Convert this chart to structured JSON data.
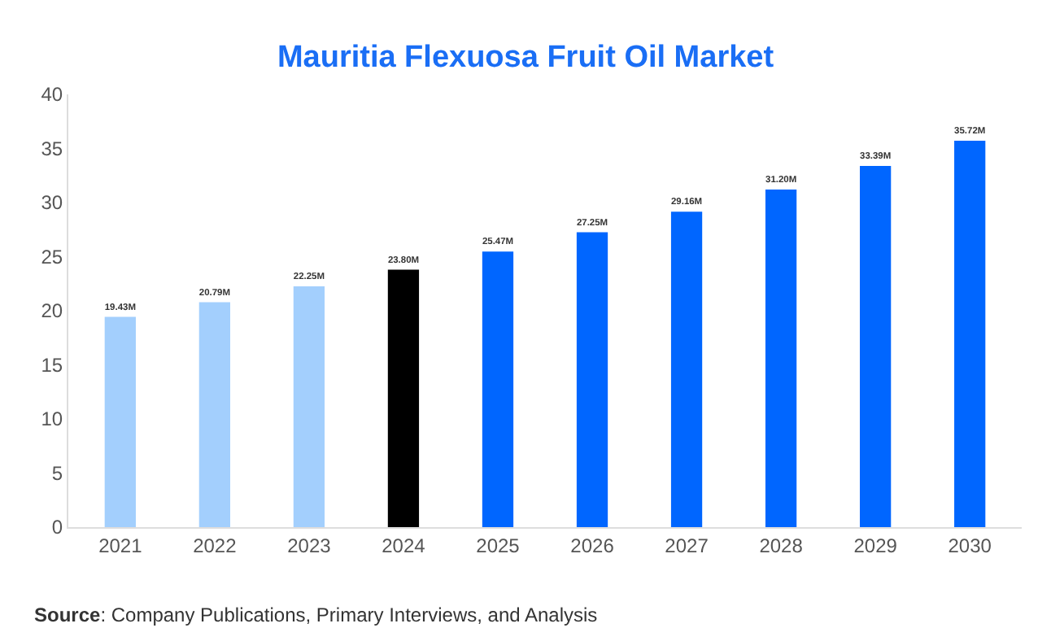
{
  "chart_data": {
    "type": "bar",
    "title": "Mauritia Flexuosa Fruit Oil Market",
    "categories": [
      "2021",
      "2022",
      "2023",
      "2024",
      "2025",
      "2026",
      "2027",
      "2028",
      "2029",
      "2030"
    ],
    "values": [
      19.43,
      20.79,
      22.25,
      23.8,
      25.47,
      27.25,
      29.16,
      31.2,
      33.39,
      35.72
    ],
    "colors": [
      "#a3cffd",
      "#a3cffd",
      "#a3cffd",
      "#000000",
      "#0066ff",
      "#0066ff",
      "#0066ff",
      "#0066ff",
      "#0066ff",
      "#0066ff"
    ],
    "value_labels": [
      "19.43M",
      "20.79M",
      "22.25M",
      "23.80M",
      "25.47M",
      "27.25M",
      "29.16M",
      "31.20M",
      "33.39M",
      "35.72M"
    ],
    "ylim": [
      0,
      40
    ],
    "yticks": [
      0,
      5,
      10,
      15,
      20,
      25,
      30,
      35,
      40
    ],
    "annotations": [
      "Source: Company Publications, Primary Interviews, and Analysis"
    ]
  }
}
